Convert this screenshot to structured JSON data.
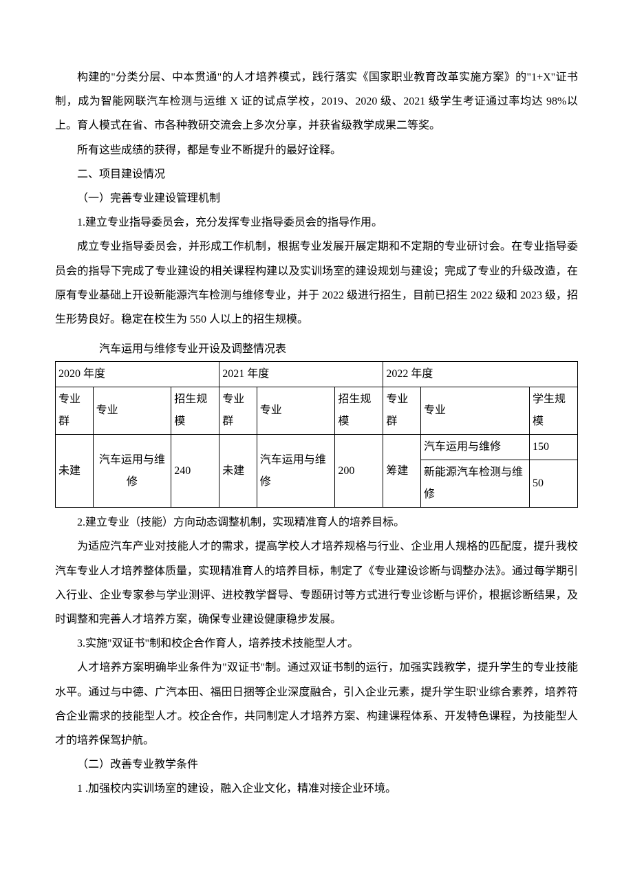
{
  "paragraphs": {
    "p1": "构建的\"分类分层、中本贯通\"的人才培养模式，践行落实《国家职业教育改革实施方案》的\"1+X\"证书制，成为智能网联汽车检测与运维 X 证的试点学校，2019、2020 级、2021 级学生考证通过率均达 98%以上。育人模式在省、市各种教研交流会上多次分享，并获省级教学成果二等奖。",
    "p2": "所有这些成绩的获得，都是专业不断提升的最好诠释。",
    "h2": "二、项目建设情况",
    "h2_1": "（一）完善专业建设管理机制",
    "p3": "1.建立专业指导委员会，充分发挥专业指导委员会的指导作用。",
    "p4": "成立专业指导委员会，并形成工作机制，根据专业发展开展定期和不定期的专业研讨会。在专业指导委员会的指导下完成了专业建设的相关课程构建以及实训场室的建设规划与建设；完成了专业的升级改造，在原有专业基础上开设新能源汽车检测与维修专业，并于 2022 级进行招生，目前已招生 2022 级和 2023 级，招生形势良好。稳定在校生为 550 人以上的招生规模。",
    "table_caption": "汽车运用与维修专业开设及调整情况表",
    "p5": "2.建立专业（技能）方向动态调整机制，实现精准育人的培养目标。",
    "p6": "为适应汽车产业对技能人才的需求，提高学校人才培养规格与行业、企业用人规格的匹配度，提升我校汽车专业人才培养整体质量，实现精准育人的培养目标，制定了《专业建设诊断与调整办法》。通过每学期引入行业、企业专家参与学业测评、进校教学督导、专题研讨等方式进行专业诊断与评价，根据诊断结果，及时调整和完善人才培养方案，确保专业建设健康稳步发展。",
    "p7": "3.实施\"双证书\"制和校企合作育人，培养技术技能型人才。",
    "p8": "人才培养方案明确毕业条件为\"双证书\"制。通过双证书制的运行，加强实践教学，提升学生的专业技能水平。通过与中德、广汽本田、福田日捆等企业深度融合，引入企业元素，提升学生职'业综合素养，培养符合企业需求的技能型人才。校企合作，共同制定人才培养方案、构建课程体系、开发特色课程，为技能型人才的培养保驾护航。",
    "h2_2": "（二）改善专业教学条件",
    "p9": "1 .加强校内实训场室的建设，融入企业文化，精准对接企业环境。"
  },
  "table": {
    "years": [
      "2020 年度",
      "2021 年度",
      "2022 年度"
    ],
    "subheaders": {
      "group": "专业群",
      "major": "专业",
      "scale": "招生规模",
      "scale_student": "学生规模"
    },
    "rows": {
      "y2020": {
        "group": "未建",
        "major": "汽车运用与维修",
        "scale": "240"
      },
      "y2021": {
        "group": "未建",
        "major": "汽车运用与维修",
        "scale": "200"
      },
      "y2022": {
        "group": "筹建",
        "r1": {
          "major": "汽车运用与维修",
          "scale": "150"
        },
        "r2": {
          "major": "新能源汽车检测与维修",
          "scale": "50"
        }
      }
    }
  }
}
